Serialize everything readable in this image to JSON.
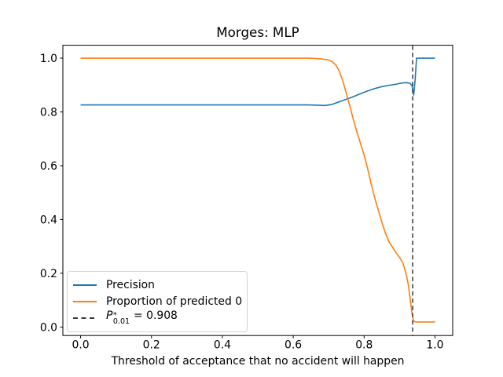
{
  "chart_data": {
    "type": "line",
    "title": "Morges: MLP",
    "xlabel": "Threshold of acceptance that no accident will happen",
    "ylabel": "",
    "xlim": [
      -0.05,
      1.05
    ],
    "ylim": [
      -0.0315,
      1.048
    ],
    "xticks": [
      0.0,
      0.2,
      0.4,
      0.6,
      0.8,
      1.0
    ],
    "yticks": [
      0.0,
      0.2,
      0.4,
      0.6,
      0.8,
      1.0
    ],
    "grid": false,
    "legend_position": "lower left",
    "series": [
      {
        "name": "Precision",
        "color": "#1f77b4",
        "style": "solid",
        "points": [
          [
            0.0,
            0.826
          ],
          [
            0.05,
            0.826
          ],
          [
            0.1,
            0.826
          ],
          [
            0.15,
            0.826
          ],
          [
            0.2,
            0.826
          ],
          [
            0.25,
            0.826
          ],
          [
            0.3,
            0.826
          ],
          [
            0.35,
            0.826
          ],
          [
            0.4,
            0.826
          ],
          [
            0.45,
            0.826
          ],
          [
            0.5,
            0.826
          ],
          [
            0.55,
            0.826
          ],
          [
            0.6,
            0.826
          ],
          [
            0.64,
            0.826
          ],
          [
            0.67,
            0.825
          ],
          [
            0.69,
            0.824
          ],
          [
            0.71,
            0.828
          ],
          [
            0.73,
            0.838
          ],
          [
            0.75,
            0.847
          ],
          [
            0.77,
            0.857
          ],
          [
            0.79,
            0.868
          ],
          [
            0.81,
            0.878
          ],
          [
            0.83,
            0.887
          ],
          [
            0.85,
            0.894
          ],
          [
            0.87,
            0.899
          ],
          [
            0.89,
            0.903
          ],
          [
            0.9,
            0.906
          ],
          [
            0.91,
            0.908
          ],
          [
            0.92,
            0.909
          ],
          [
            0.93,
            0.906
          ],
          [
            0.935,
            0.898
          ],
          [
            0.94,
            0.863
          ],
          [
            0.944,
            0.92
          ],
          [
            0.948,
            1.0
          ],
          [
            0.96,
            1.0
          ],
          [
            0.98,
            1.0
          ],
          [
            1.0,
            1.0
          ]
        ]
      },
      {
        "name": "Proportion of predicted 0",
        "color": "#ff7f0e",
        "style": "solid",
        "points": [
          [
            0.0,
            1.0
          ],
          [
            0.05,
            1.0
          ],
          [
            0.1,
            1.0
          ],
          [
            0.15,
            1.0
          ],
          [
            0.2,
            1.0
          ],
          [
            0.25,
            1.0
          ],
          [
            0.3,
            1.0
          ],
          [
            0.35,
            1.0
          ],
          [
            0.4,
            1.0
          ],
          [
            0.45,
            1.0
          ],
          [
            0.5,
            1.0
          ],
          [
            0.55,
            1.0
          ],
          [
            0.6,
            1.0
          ],
          [
            0.64,
            1.0
          ],
          [
            0.66,
            0.999
          ],
          [
            0.68,
            0.997
          ],
          [
            0.7,
            0.993
          ],
          [
            0.71,
            0.987
          ],
          [
            0.72,
            0.975
          ],
          [
            0.73,
            0.952
          ],
          [
            0.74,
            0.915
          ],
          [
            0.75,
            0.868
          ],
          [
            0.76,
            0.82
          ],
          [
            0.77,
            0.77
          ],
          [
            0.78,
            0.724
          ],
          [
            0.79,
            0.682
          ],
          [
            0.8,
            0.64
          ],
          [
            0.81,
            0.59
          ],
          [
            0.82,
            0.532
          ],
          [
            0.83,
            0.48
          ],
          [
            0.84,
            0.435
          ],
          [
            0.85,
            0.39
          ],
          [
            0.86,
            0.35
          ],
          [
            0.87,
            0.318
          ],
          [
            0.88,
            0.297
          ],
          [
            0.89,
            0.277
          ],
          [
            0.9,
            0.259
          ],
          [
            0.91,
            0.237
          ],
          [
            0.92,
            0.19
          ],
          [
            0.925,
            0.155
          ],
          [
            0.93,
            0.105
          ],
          [
            0.935,
            0.052
          ],
          [
            0.94,
            0.022
          ],
          [
            0.945,
            0.019
          ],
          [
            0.95,
            0.019
          ],
          [
            0.96,
            0.019
          ],
          [
            0.97,
            0.019
          ],
          [
            0.98,
            0.019
          ],
          [
            0.99,
            0.019
          ],
          [
            1.0,
            0.019
          ]
        ]
      }
    ],
    "vline": {
      "x": 0.937,
      "color": "#3a3a3a",
      "style": "dashed",
      "value_label": "0.908"
    }
  },
  "legend": {
    "items": [
      {
        "label": "Precision",
        "color": "#1f77b4",
        "dashed": false
      },
      {
        "label": "Proportion of predicted 0",
        "color": "#ff7f0e",
        "dashed": false
      },
      {
        "label": "",
        "color": "#3a3a3a",
        "dashed": true,
        "math": {
          "p": "P",
          "sup": "*",
          "sub": "0.01",
          "eq": "= 0.908"
        }
      }
    ]
  }
}
